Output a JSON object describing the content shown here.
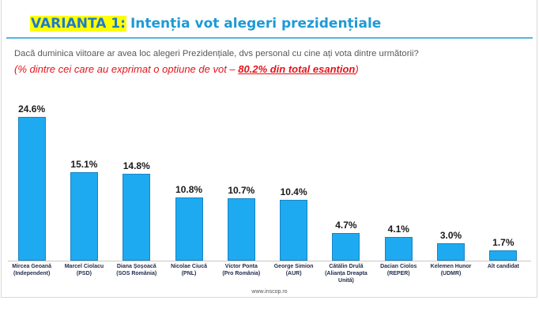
{
  "title": {
    "highlight": "VARIANTA 1:",
    "text": "Intenția vot alegeri prezidențiale"
  },
  "question": "Dacă duminica viitoare ar avea loc alegeri Prezidențiale, dvs personal cu cine ați vota dintre următorii?",
  "note": {
    "text": "(% dintre cei care au exprimat o optiune de vot – ",
    "emphasis": "80.2% din total esantion",
    "close": ")"
  },
  "footer": "www.inscop.ro",
  "colors": {
    "title_highlight_bg": "#ffff00",
    "title_highlight_text": "#1f7acb",
    "title_text": "#1e9ad6",
    "divider": "#55b4e6",
    "question_text": "#595959",
    "note_text": "#e3141b",
    "bar": "#1eaaf0",
    "bar_border": "#1a83c6",
    "value_label": "#1a1a1a",
    "category_label": "#1f2a4a"
  },
  "chart_data": {
    "type": "bar",
    "categories": [
      "Mircea Geoană (Independent)",
      "Marcel Ciolacu (PSD)",
      "Diana Șoșoacă (SOS România)",
      "Nicolae Ciucă (PNL)",
      "Victor Ponta (Pro România)",
      "George Simion (AUR)",
      "Cătălin Drulă (Alianța Dreapta Unită)",
      "Dacian Ciolos (REPER)",
      "Kelemen Hunor (UDMR)",
      "Alt candidat"
    ],
    "values": [
      24.6,
      15.1,
      14.8,
      10.8,
      10.7,
      10.4,
      4.7,
      4.1,
      3.0,
      1.7
    ],
    "unit": "%",
    "ylim": [
      0,
      25
    ],
    "grid": false
  }
}
